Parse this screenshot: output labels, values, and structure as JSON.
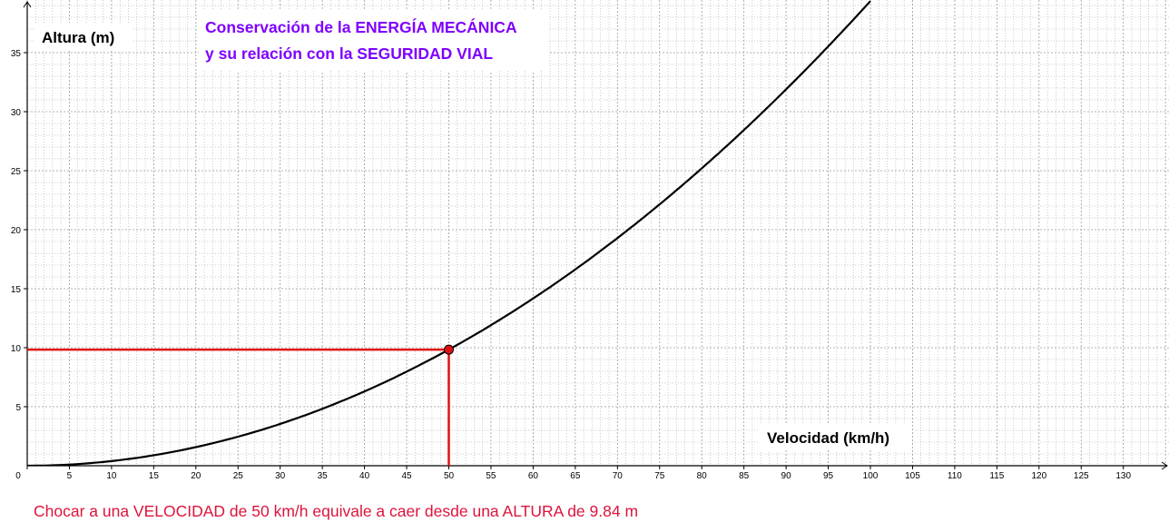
{
  "title": {
    "line1": "Conservación de la ENERGÍA MECÁNICA",
    "line2": "y su relación con la SEGURIDAD VIAL"
  },
  "result_text": "Chocar a una VELOCIDAD de 50 km/h equivale a caer desde una ALTURA de 9.84 m",
  "colors": {
    "title": "#7f00ff",
    "curve": "#000000",
    "marker": "#e01010",
    "result_text": "#dc143c",
    "grid": "#9a9a9a"
  },
  "chart_data": {
    "type": "line",
    "function": "h = v^2 / (2·9.8) with v in m/s",
    "xlabel": "Velocidad (km/h)",
    "ylabel": "Altura (m)",
    "xlim": [
      0,
      136
    ],
    "ylim": [
      0,
      39
    ],
    "x_ticks": [
      "0",
      "5",
      "10",
      "15",
      "20",
      "25",
      "30",
      "35",
      "40",
      "45",
      "50",
      "55",
      "60",
      "65",
      "70",
      "75",
      "80",
      "85",
      "90",
      "95",
      "100",
      "105",
      "110",
      "115",
      "120",
      "125",
      "130"
    ],
    "y_ticks": [
      "5",
      "10",
      "15",
      "20",
      "25",
      "30",
      "35"
    ],
    "grid": true,
    "series": [
      {
        "points": [
          [
            0,
            0
          ],
          [
            10,
            0.39
          ],
          [
            20,
            1.57
          ],
          [
            30,
            3.54
          ],
          [
            40,
            6.3
          ],
          [
            50,
            9.84
          ],
          [
            60,
            14.17
          ],
          [
            70,
            19.29
          ],
          [
            80,
            25.19
          ],
          [
            90,
            31.89
          ],
          [
            100,
            39.37
          ]
        ]
      }
    ],
    "marker": {
      "x": 50,
      "y": 9.84
    }
  }
}
